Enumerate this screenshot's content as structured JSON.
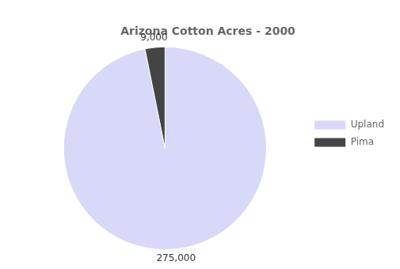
{
  "chart_data": {
    "type": "pie",
    "title": "Arizona Cotton Acres - 2000",
    "categories": [
      "Upland",
      "Pima"
    ],
    "values": [
      275000,
      9000
    ],
    "value_labels": [
      "275,000",
      "9,000"
    ],
    "data_labels": true,
    "colors": [
      "#d8d8f8",
      "#444444"
    ],
    "legend": "right"
  }
}
